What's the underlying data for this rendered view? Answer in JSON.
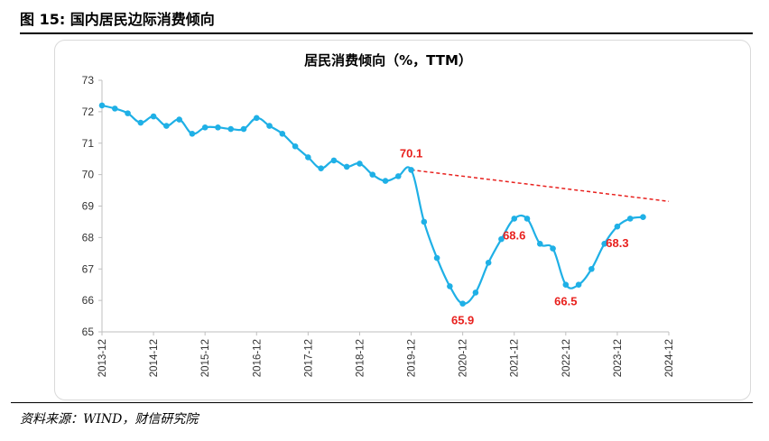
{
  "figure": {
    "title": "图 15:  国内居民边际消费倾向",
    "source": "资料来源：WIND，财信研究院"
  },
  "colors": {
    "series": "#1fb0e6",
    "annotation": "#e8211e",
    "trend": "#e8211e",
    "axis": "#bfbfbf"
  },
  "chart_data": {
    "type": "line",
    "title": "居民消费倾向（%，TTM）",
    "xlabel": "",
    "ylabel": "",
    "ylim": [
      65,
      73
    ],
    "yticks": [
      "73",
      "72",
      "71",
      "70",
      "69",
      "68",
      "67",
      "66",
      "65"
    ],
    "xticks": [
      "2013-12",
      "2014-12",
      "2015-12",
      "2016-12",
      "2017-12",
      "2018-12",
      "2019-12",
      "2020-12",
      "2021-12",
      "2022-12",
      "2023-12",
      "2024-12"
    ],
    "grid": false,
    "legend": "none",
    "series": [
      {
        "x": [
          "2013-12",
          "2014-03",
          "2014-06",
          "2014-09",
          "2014-12",
          "2015-03",
          "2015-06",
          "2015-09",
          "2015-12",
          "2016-03",
          "2016-06",
          "2016-09",
          "2016-12",
          "2017-03",
          "2017-06",
          "2017-09",
          "2017-12",
          "2018-03",
          "2018-06",
          "2018-09",
          "2018-12",
          "2019-03",
          "2019-06",
          "2019-09",
          "2019-12",
          "2020-03",
          "2020-06",
          "2020-09",
          "2020-12",
          "2021-03",
          "2021-06",
          "2021-09",
          "2021-12",
          "2022-03",
          "2022-06",
          "2022-09",
          "2022-12",
          "2023-03",
          "2023-06",
          "2023-09",
          "2023-12",
          "2024-03",
          "2024-06"
        ],
        "values": [
          72.2,
          72.1,
          71.95,
          71.65,
          71.85,
          71.55,
          71.75,
          71.3,
          71.5,
          71.5,
          71.45,
          71.45,
          71.8,
          71.55,
          71.3,
          70.9,
          70.55,
          70.2,
          70.45,
          70.25,
          70.35,
          70.0,
          69.8,
          69.95,
          70.15,
          68.5,
          67.35,
          66.45,
          65.9,
          66.25,
          67.2,
          67.95,
          68.6,
          68.6,
          67.8,
          67.65,
          66.5,
          66.5,
          67.0,
          67.8,
          68.35,
          68.6,
          68.65
        ]
      }
    ],
    "annotations": [
      {
        "text": "70.1",
        "x": "2019-12",
        "y": 70.15,
        "anchor": "above"
      },
      {
        "text": "65.9",
        "x": "2020-12",
        "y": 65.9,
        "anchor": "below"
      },
      {
        "text": "68.6",
        "x": "2021-12",
        "y": 68.6,
        "anchor": "below"
      },
      {
        "text": "66.5",
        "x": "2022-12",
        "y": 66.5,
        "anchor": "below"
      },
      {
        "text": "68.3",
        "x": "2023-12",
        "y": 68.35,
        "anchor": "below"
      }
    ],
    "trendline": {
      "from": {
        "x": "2019-12",
        "y": 70.15
      },
      "to": {
        "x": "2024-12",
        "y": 69.15
      },
      "style": "dashed"
    }
  }
}
